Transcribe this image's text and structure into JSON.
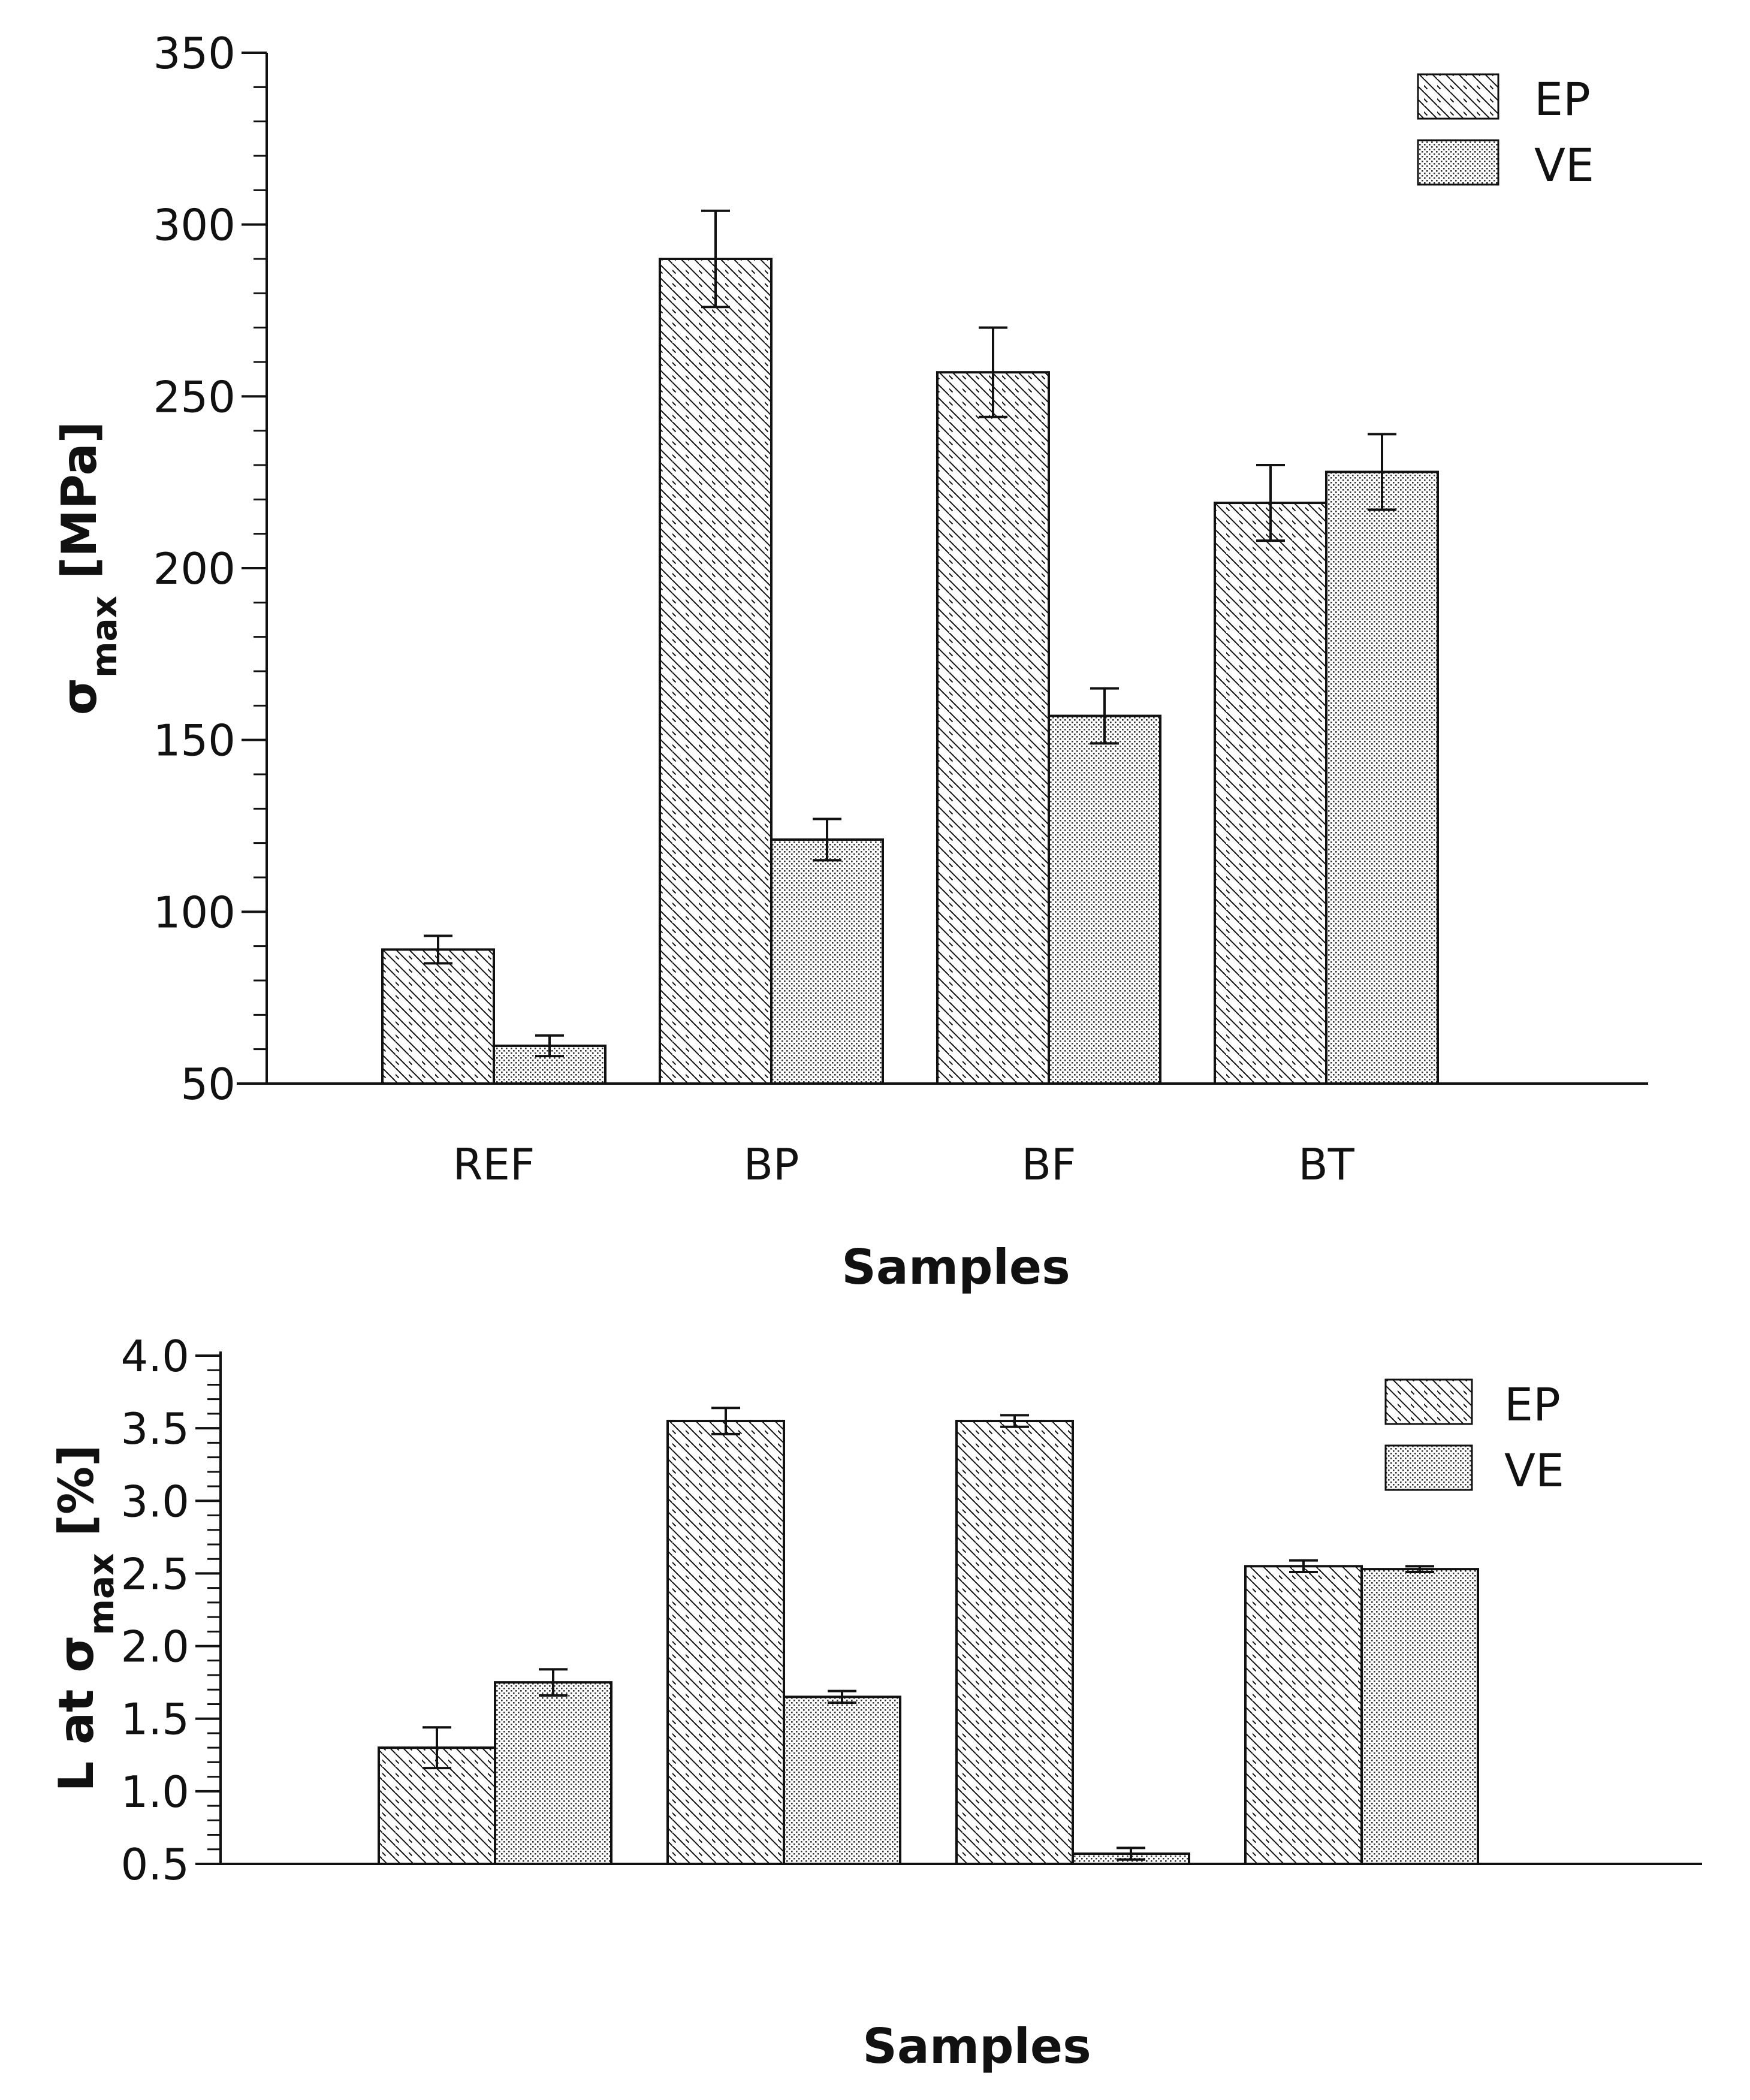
{
  "chart_data": [
    {
      "type": "bar",
      "categories": [
        "REF",
        "BP",
        "BF",
        "BT"
      ],
      "series": [
        {
          "name": "EP",
          "values": [
            89,
            290,
            257,
            219
          ],
          "errors": [
            4,
            14,
            13,
            11
          ]
        },
        {
          "name": "VE",
          "values": [
            61,
            121,
            157,
            228
          ],
          "errors": [
            3,
            6,
            8,
            11
          ]
        }
      ],
      "ylabel_main": "σ",
      "ylabel_sub": "max",
      "ylabel_suffix": " [MPa]",
      "xlabel": "Samples",
      "ylim": [
        50,
        350
      ],
      "yticks": [
        "50",
        "100",
        "150",
        "200",
        "250",
        "300",
        "350"
      ],
      "legend": "top-right"
    },
    {
      "type": "bar",
      "categories": [
        "",
        "",
        "",
        ""
      ],
      "series": [
        {
          "name": "EP",
          "values": [
            1.3,
            3.55,
            3.55,
            2.55
          ],
          "errors": [
            0.14,
            0.09,
            0.04,
            0.04
          ]
        },
        {
          "name": "VE",
          "values": [
            1.75,
            1.65,
            0.57,
            2.53
          ],
          "errors": [
            0.09,
            0.04,
            0.04,
            0.02
          ]
        }
      ],
      "ylabel_main": "L at σ",
      "ylabel_sub": "max",
      "ylabel_suffix": " [%]",
      "xlabel": "Samples",
      "ylim": [
        0.5,
        4.0
      ],
      "yticks": [
        "0.5",
        "1.0",
        "1.5",
        "2.0",
        "2.5",
        "3.0",
        "3.5",
        "4.0"
      ],
      "legend": "top-right"
    }
  ]
}
